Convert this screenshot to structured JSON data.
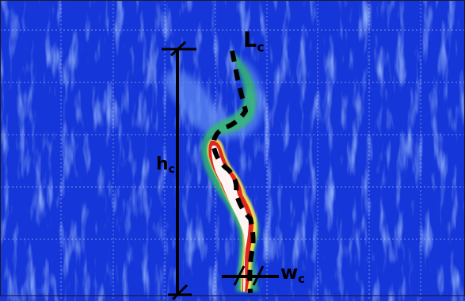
{
  "figure": {
    "labels": {
      "length": {
        "main": "L",
        "sub": "c"
      },
      "height": {
        "main": "h",
        "sub": "c"
      },
      "width": {
        "main": "w",
        "sub": "c"
      }
    },
    "colors": {
      "background_dark": "#0a1bb5",
      "background_mid": "#1536d8",
      "background_light": "#5c86f2",
      "grid": "#c8d6ff",
      "plume_green": "#36c06a",
      "plume_yellow": "#ffe94d",
      "plume_red": "#e01d1d",
      "plume_core": "#ffffff",
      "annotation": "#000000"
    }
  }
}
